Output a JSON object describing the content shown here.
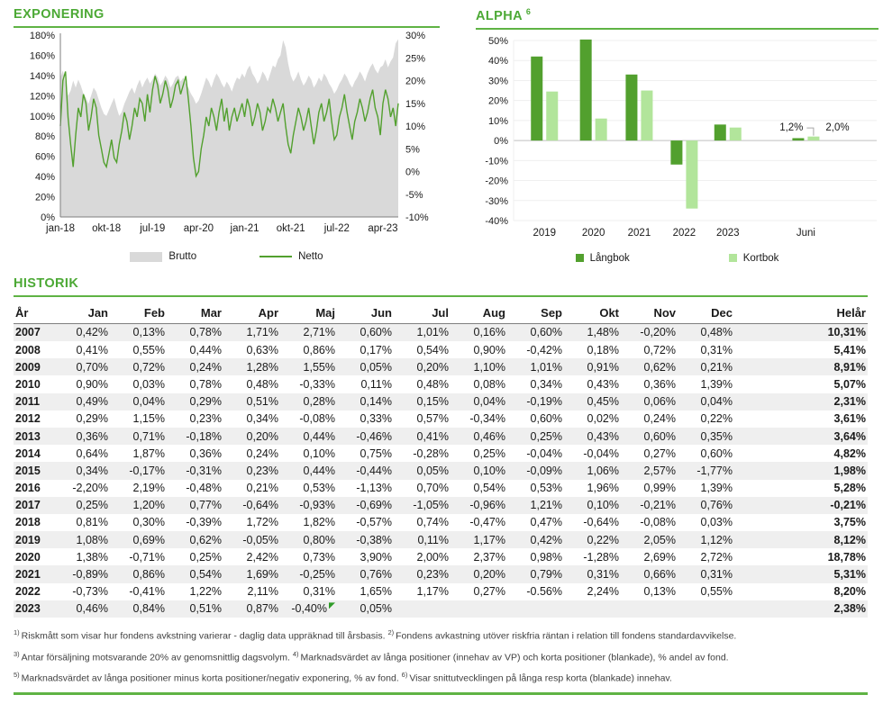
{
  "colors": {
    "accent_green": "#4CA935",
    "rule_green": "#5FB344",
    "dark_green": "#52A02E",
    "light_green": "#B2E59B",
    "area_gray": "#D9D9D9",
    "row_stripe": "#EFEFEF",
    "grid_light": "#EFEFEF",
    "zero_line": "#BFBFBF",
    "axis_gray": "#7F7F7F"
  },
  "exponering": {
    "title": "EXPONERING",
    "legend": {
      "brutto": "Brutto",
      "netto": "Netto"
    }
  },
  "alpha": {
    "title": "ALPHA",
    "superscript": "6",
    "legend": {
      "langbok": "Långbok",
      "kortbok": "Kortbok"
    },
    "annotations": {
      "langbok_juni": "1,2%",
      "kortbok_juni": "2,0%"
    }
  },
  "chart_data": [
    {
      "name": "exponering",
      "type": "area",
      "title": "EXPONERING",
      "x_ticks": {
        "labels": [
          "jan-18",
          "okt-18",
          "jul-19",
          "apr-20",
          "jan-21",
          "okt-21",
          "jul-22",
          "apr-23"
        ],
        "month_positions": [
          0,
          9,
          18,
          27,
          36,
          45,
          54,
          63
        ],
        "total_months": 66
      },
      "left_axis": {
        "min": 0,
        "max": 180,
        "tick_values": [
          180,
          160,
          140,
          120,
          100,
          80,
          60,
          40,
          20,
          0
        ],
        "tick_labels": [
          "180%",
          "160%",
          "140%",
          "120%",
          "100%",
          "80%",
          "60%",
          "40%",
          "20%",
          "0%"
        ]
      },
      "right_axis": {
        "min": -10,
        "max": 30,
        "tick_values": [
          30,
          25,
          20,
          15,
          10,
          5,
          0,
          -5,
          -10
        ],
        "tick_labels": [
          "30%",
          "25%",
          "20%",
          "15%",
          "10%",
          "5%",
          "0%",
          "-5%",
          "-10%"
        ]
      },
      "legend_position": "bottom",
      "grid": false,
      "series": [
        {
          "name": "Brutto",
          "axis": "left",
          "style": "area",
          "color": "#D9D9D9",
          "values": [
            138,
            145,
            132,
            120,
            125,
            135,
            128,
            136,
            130,
            122,
            118,
            112,
            120,
            128,
            124,
            116,
            108,
            102,
            100,
            106,
            112,
            118,
            108,
            100,
            104,
            112,
            118,
            124,
            128,
            122,
            130,
            136,
            128,
            134,
            138,
            132,
            136,
            142,
            138,
            130,
            134,
            140,
            136,
            128,
            132,
            138,
            140,
            134,
            138,
            132,
            128,
            122,
            118,
            112,
            115,
            122,
            130,
            138,
            134,
            128,
            136,
            142,
            138,
            132,
            128,
            134,
            130,
            124,
            132,
            138,
            136,
            142,
            138,
            146,
            150,
            142,
            138,
            132,
            136,
            144,
            140,
            134,
            142,
            150,
            148,
            156,
            160,
            175,
            168,
            152,
            140,
            134,
            138,
            144,
            136,
            130,
            134,
            140,
            136,
            128,
            132,
            138,
            134,
            142,
            138,
            132,
            128,
            122,
            126,
            132,
            136,
            142,
            138,
            132,
            128,
            134,
            138,
            144,
            140,
            134,
            142,
            148,
            152,
            146,
            142,
            148,
            150,
            156,
            148,
            154,
            158,
            172,
            176
          ]
        },
        {
          "name": "Netto",
          "axis": "right",
          "style": "line",
          "color": "#52A02E",
          "values": [
            10,
            20,
            22,
            12,
            6,
            1,
            8,
            14,
            12,
            17,
            15,
            9,
            12,
            16,
            14,
            8,
            5,
            2,
            1,
            4,
            7,
            3,
            2,
            6,
            9,
            13,
            11,
            7,
            10,
            14,
            12,
            16,
            15,
            11,
            17,
            13,
            18,
            21,
            19,
            15,
            17,
            20,
            18,
            14,
            16,
            19,
            20,
            17,
            19,
            21,
            16,
            10,
            3,
            -1,
            0,
            5,
            8,
            12,
            10,
            14,
            12,
            9,
            13,
            16,
            11,
            14,
            9,
            12,
            14,
            11,
            13,
            15,
            12,
            16,
            14,
            10,
            12,
            15,
            13,
            9,
            11,
            14,
            13,
            16,
            14,
            11,
            13,
            15,
            10,
            6,
            4,
            8,
            11,
            14,
            12,
            9,
            11,
            14,
            10,
            6,
            9,
            13,
            15,
            11,
            13,
            16,
            11,
            7,
            8,
            12,
            14,
            17,
            13,
            10,
            7,
            11,
            13,
            16,
            14,
            11,
            13,
            16,
            18,
            14,
            12,
            8,
            15,
            18,
            16,
            12,
            14,
            10,
            15
          ]
        }
      ]
    },
    {
      "name": "alpha",
      "type": "bar",
      "title": "ALPHA",
      "categories": [
        "2019",
        "2020",
        "2021",
        "2022",
        "2023",
        "Juni"
      ],
      "category_positions": [
        0.085,
        0.22,
        0.346,
        0.47,
        0.59,
        0.805
      ],
      "series": [
        {
          "name": "Långbok",
          "color": "#52A02E",
          "values": [
            42,
            50.5,
            33,
            -12,
            8,
            1.2
          ]
        },
        {
          "name": "Kortbok",
          "color": "#B2E59B",
          "values": [
            24.5,
            11,
            25,
            -34,
            6.5,
            2
          ]
        }
      ],
      "ylim": [
        -40,
        50
      ],
      "y_tick_values": [
        50,
        40,
        30,
        20,
        10,
        0,
        -10,
        -20,
        -30,
        -40
      ],
      "y_tick_labels": [
        "50%",
        "40%",
        "30%",
        "20%",
        "10%",
        "0%",
        "-10%",
        "-20%",
        "-30%",
        "-40%"
      ],
      "grid": true,
      "legend_position": "bottom",
      "annotations": [
        {
          "text": "1,2%",
          "series": "Långbok",
          "category": "Juni"
        },
        {
          "text": "2,0%",
          "series": "Kortbok",
          "category": "Juni"
        }
      ]
    }
  ],
  "historik": {
    "title": "HISTORIK",
    "columns": [
      "År",
      "Jan",
      "Feb",
      "Mar",
      "Apr",
      "Maj",
      "Jun",
      "Jul",
      "Aug",
      "Sep",
      "Okt",
      "Nov",
      "Dec",
      "Helår"
    ],
    "rows": [
      {
        "year": "2007",
        "values": [
          "0,42%",
          "0,13%",
          "0,78%",
          "1,71%",
          "2,71%",
          "0,60%",
          "1,01%",
          "0,16%",
          "0,60%",
          "1,48%",
          "-0,20%",
          "0,48%"
        ],
        "helar": "10,31%"
      },
      {
        "year": "2008",
        "values": [
          "0,41%",
          "0,55%",
          "0,44%",
          "0,63%",
          "0,86%",
          "0,17%",
          "0,54%",
          "0,90%",
          "-0,42%",
          "0,18%",
          "0,72%",
          "0,31%"
        ],
        "helar": "5,41%"
      },
      {
        "year": "2009",
        "values": [
          "0,70%",
          "0,72%",
          "0,24%",
          "1,28%",
          "1,55%",
          "0,05%",
          "0,20%",
          "1,10%",
          "1,01%",
          "0,91%",
          "0,62%",
          "0,21%"
        ],
        "helar": "8,91%"
      },
      {
        "year": "2010",
        "values": [
          "0,90%",
          "0,03%",
          "0,78%",
          "0,48%",
          "-0,33%",
          "0,11%",
          "0,48%",
          "0,08%",
          "0,34%",
          "0,43%",
          "0,36%",
          "1,39%"
        ],
        "helar": "5,07%"
      },
      {
        "year": "2011",
        "values": [
          "0,49%",
          "0,04%",
          "0,29%",
          "0,51%",
          "0,28%",
          "0,14%",
          "0,15%",
          "0,04%",
          "-0,19%",
          "0,45%",
          "0,06%",
          "0,04%"
        ],
        "helar": "2,31%"
      },
      {
        "year": "2012",
        "values": [
          "0,29%",
          "1,15%",
          "0,23%",
          "0,34%",
          "-0,08%",
          "0,33%",
          "0,57%",
          "-0,34%",
          "0,60%",
          "0,02%",
          "0,24%",
          "0,22%"
        ],
        "helar": "3,61%"
      },
      {
        "year": "2013",
        "values": [
          "0,36%",
          "0,71%",
          "-0,18%",
          "0,20%",
          "0,44%",
          "-0,46%",
          "0,41%",
          "0,46%",
          "0,25%",
          "0,43%",
          "0,60%",
          "0,35%"
        ],
        "helar": "3,64%"
      },
      {
        "year": "2014",
        "values": [
          "0,64%",
          "1,87%",
          "0,36%",
          "0,24%",
          "0,10%",
          "0,75%",
          "-0,28%",
          "0,25%",
          "-0,04%",
          "-0,04%",
          "0,27%",
          "0,60%"
        ],
        "helar": "4,82%"
      },
      {
        "year": "2015",
        "values": [
          "0,34%",
          "-0,17%",
          "-0,31%",
          "0,23%",
          "0,44%",
          "-0,44%",
          "0,05%",
          "0,10%",
          "-0,09%",
          "1,06%",
          "2,57%",
          "-1,77%"
        ],
        "helar": "1,98%"
      },
      {
        "year": "2016",
        "values": [
          "-2,20%",
          "2,19%",
          "-0,48%",
          "0,21%",
          "0,53%",
          "-1,13%",
          "0,70%",
          "0,54%",
          "0,53%",
          "1,96%",
          "0,99%",
          "1,39%"
        ],
        "helar": "5,28%"
      },
      {
        "year": "2017",
        "values": [
          "0,25%",
          "1,20%",
          "0,77%",
          "-0,64%",
          "-0,93%",
          "-0,69%",
          "-1,05%",
          "-0,96%",
          "1,21%",
          "0,10%",
          "-0,21%",
          "0,76%"
        ],
        "helar": "-0,21%"
      },
      {
        "year": "2018",
        "values": [
          "0,81%",
          "0,30%",
          "-0,39%",
          "1,72%",
          "1,82%",
          "-0,57%",
          "0,74%",
          "-0,47%",
          "0,47%",
          "-0,64%",
          "-0,08%",
          "0,03%"
        ],
        "helar": "3,75%"
      },
      {
        "year": "2019",
        "values": [
          "1,08%",
          "0,69%",
          "0,62%",
          "-0,05%",
          "0,80%",
          "-0,38%",
          "0,11%",
          "1,17%",
          "0,42%",
          "0,22%",
          "2,05%",
          "1,12%"
        ],
        "helar": "8,12%"
      },
      {
        "year": "2020",
        "values": [
          "1,38%",
          "-0,71%",
          "0,25%",
          "2,42%",
          "0,73%",
          "3,90%",
          "2,00%",
          "2,37%",
          "0,98%",
          "-1,28%",
          "2,69%",
          "2,72%"
        ],
        "helar": "18,78%"
      },
      {
        "year": "2021",
        "values": [
          "-0,89%",
          "0,86%",
          "0,54%",
          "1,69%",
          "-0,25%",
          "0,76%",
          "0,23%",
          "0,20%",
          "0,79%",
          "0,31%",
          "0,66%",
          "0,31%"
        ],
        "helar": "5,31%"
      },
      {
        "year": "2022",
        "values": [
          "-0,73%",
          "-0,41%",
          "1,22%",
          "2,11%",
          "0,31%",
          "1,65%",
          "1,17%",
          "0,27%",
          "-0.56%",
          "2,24%",
          "0,13%",
          "0,55%"
        ],
        "helar": "8,20%"
      },
      {
        "year": "2023",
        "values": [
          "0,46%",
          "0,84%",
          "0,51%",
          "0,87%",
          "-0,40%",
          "0,05%",
          "",
          "",
          "",
          "",
          "",
          ""
        ],
        "helar": "2,38%",
        "flag": 4
      }
    ]
  },
  "footnotes": {
    "lines": [
      [
        {
          "sup": "1)",
          "text": "Riskmått som visar hur fondens avkstning varierar - daglig data uppräknad till årsbasis."
        },
        {
          "sup": "2)",
          "text": "Fondens avkastning utöver riskfria räntan i relation till fondens standardavvikelse."
        }
      ],
      [
        {
          "sup": "3)",
          "text": "Antar försäljning motsvarande 20% av genomsnittlig dagsvolym."
        },
        {
          "sup": "4)",
          "text": "Marknadsvärdet av långa positioner (innehav av VP) och korta positioner (blankade), % andel av fond."
        }
      ],
      [
        {
          "sup": "5)",
          "text": "Marknadsvärdet av långa positioner minus korta positioner/negativ exponering, % av fond."
        },
        {
          "sup": "6)",
          "text": "Visar snittutvecklingen på långa resp korta (blankade) innehav."
        }
      ]
    ]
  }
}
